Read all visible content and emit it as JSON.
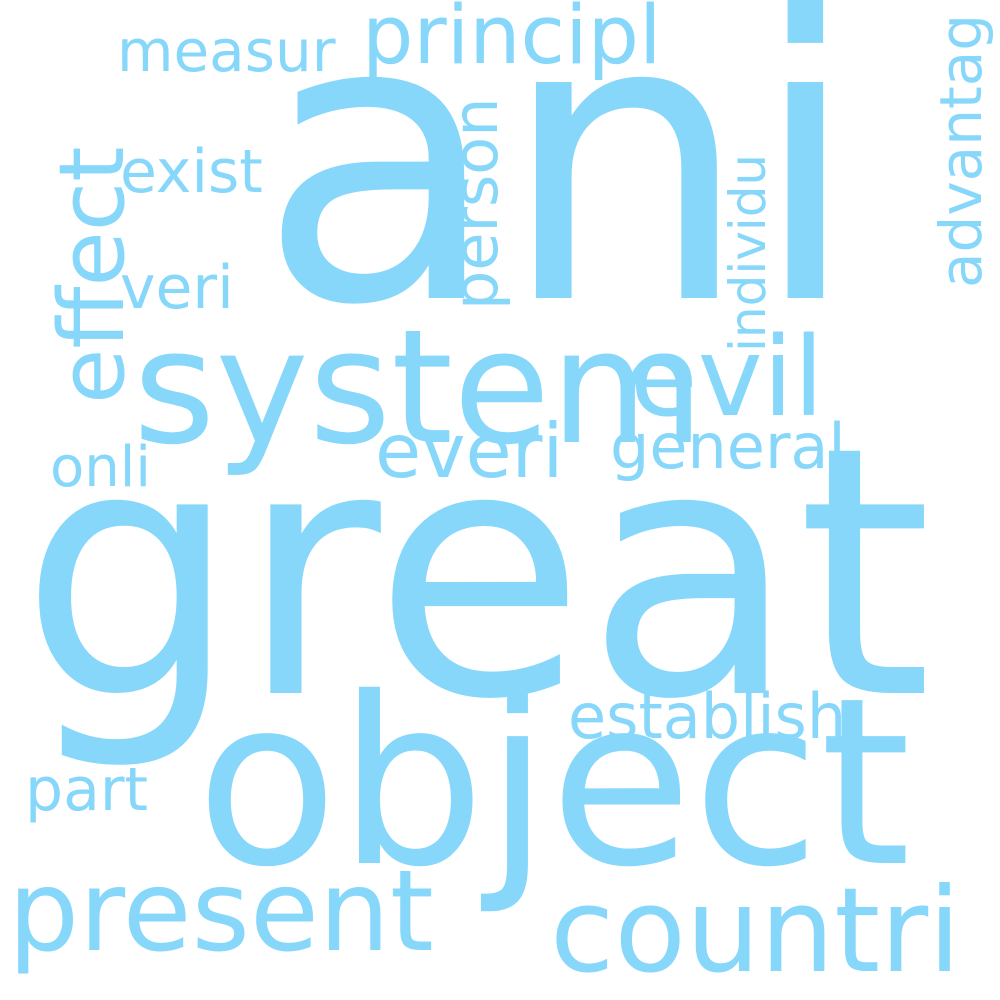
{
  "cloud": {
    "color": "#87d7fa",
    "background": "#ffffff",
    "words": {
      "ani": "ani",
      "great": "great",
      "object": "object",
      "system": "system",
      "countri": "countri",
      "present": "present",
      "effect": "effect",
      "evil": "evil",
      "principl": "principl",
      "measur": "measur",
      "exist": "exist",
      "veri": "veri",
      "person": "person",
      "individu": "individu",
      "advantag": "advantag",
      "ever": "everi",
      "general": "general",
      "onli": "onli",
      "establish": "establish",
      "part": "part"
    }
  }
}
